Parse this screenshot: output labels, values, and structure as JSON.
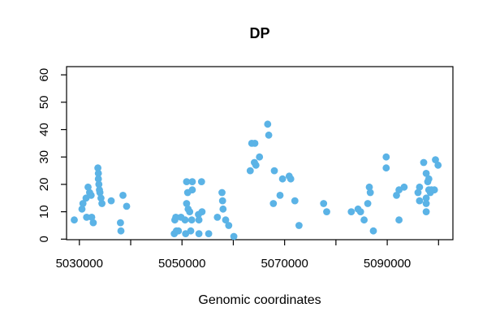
{
  "figure": {
    "title": "DP",
    "xlabel": "Genomic coordinates"
  },
  "chart_data": {
    "type": "scatter",
    "title": "DP",
    "xlabel": "Genomic coordinates",
    "ylabel": "",
    "legend": "none",
    "grid": false,
    "point_color": "#5BB3E6",
    "axis_color": "#000000",
    "background_color": "#FFFFFF",
    "xlim": [
      5027500,
      5102800
    ],
    "ylim": [
      -0.2,
      63
    ],
    "x_ticks": [
      {
        "value": 5030000,
        "label": "5030000"
      },
      {
        "value": 5040000,
        "label": ""
      },
      {
        "value": 5050000,
        "label": "5050000"
      },
      {
        "value": 5060000,
        "label": ""
      },
      {
        "value": 5070000,
        "label": "5070000"
      },
      {
        "value": 5080000,
        "label": ""
      },
      {
        "value": 5090000,
        "label": "5090000"
      },
      {
        "value": 5100000,
        "label": ""
      }
    ],
    "y_ticks": [
      {
        "value": 0,
        "label": "0"
      },
      {
        "value": 10,
        "label": "10"
      },
      {
        "value": 20,
        "label": "20"
      },
      {
        "value": 30,
        "label": "30"
      },
      {
        "value": 40,
        "label": "40"
      },
      {
        "value": 50,
        "label": "50"
      },
      {
        "value": 60,
        "label": "60"
      }
    ],
    "x": [
      5029000,
      5030500,
      5030700,
      5031300,
      5031400,
      5031700,
      5032000,
      5032300,
      5032400,
      5032700,
      5033600,
      5033700,
      5033700,
      5033800,
      5033900,
      5034000,
      5034200,
      5034400,
      5036200,
      5038000,
      5038100,
      5038500,
      5039200,
      5048500,
      5048600,
      5048800,
      5048900,
      5049300,
      5049800,
      5050600,
      5050700,
      5050900,
      5050900,
      5051100,
      5051200,
      5051500,
      5051700,
      5051900,
      5052000,
      5052000,
      5053200,
      5053300,
      5053300,
      5053800,
      5053900,
      5055200,
      5056900,
      5057800,
      5057900,
      5058000,
      5058500,
      5059100,
      5060100,
      5063300,
      5063600,
      5064100,
      5064200,
      5064400,
      5065100,
      5066700,
      5066900,
      5067800,
      5068000,
      5069100,
      5069600,
      5070900,
      5071200,
      5072000,
      5072800,
      5077600,
      5078200,
      5083000,
      5084300,
      5084800,
      5085500,
      5086200,
      5086500,
      5086700,
      5087300,
      5089800,
      5089800,
      5091800,
      5092300,
      5092300,
      5093300,
      5096000,
      5096300,
      5096300,
      5097100,
      5097600,
      5097600,
      5097600,
      5097600,
      5097900,
      5098100,
      5098100,
      5098400,
      5098600,
      5099200,
      5099400,
      5099900
    ],
    "y": [
      7,
      11,
      13,
      15,
      8,
      19,
      17,
      16,
      8,
      6,
      26,
      24,
      22,
      20,
      18,
      17,
      15,
      13,
      14,
      6,
      3,
      16,
      12,
      2,
      7,
      8,
      3,
      3,
      8,
      7,
      2,
      13,
      21,
      17,
      11,
      10,
      3,
      7,
      21,
      18,
      9,
      7,
      2,
      21,
      10,
      2,
      8,
      17,
      14,
      11,
      7,
      5,
      1,
      25,
      35,
      28,
      35,
      27,
      30,
      42,
      38,
      13,
      25,
      16,
      22,
      23,
      22,
      14,
      5,
      13,
      10,
      10,
      11,
      10,
      7,
      13,
      19,
      17,
      3,
      30,
      26,
      16,
      18,
      7,
      19,
      17,
      19,
      14,
      28,
      24,
      15,
      13,
      10,
      21,
      22,
      18,
      17,
      18,
      18,
      29,
      27
    ]
  }
}
